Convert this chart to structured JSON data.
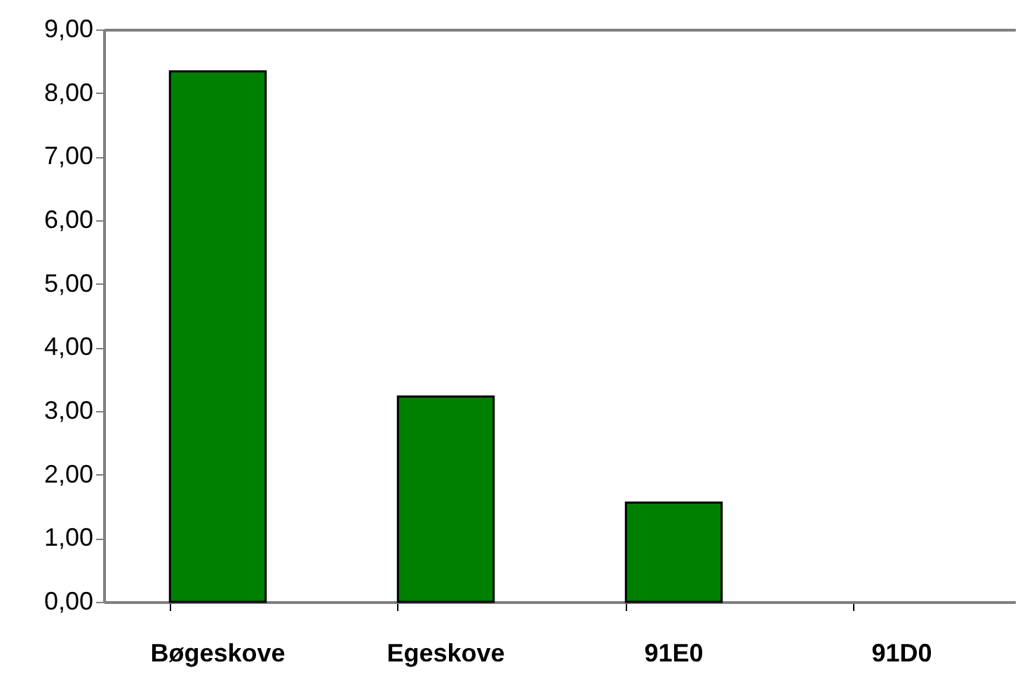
{
  "chart_data": {
    "type": "bar",
    "categories": [
      "Bøgeskove",
      "Egeskove",
      "91E0",
      "91D0"
    ],
    "values": [
      8.34,
      3.23,
      1.56,
      0
    ],
    "color": "#008000",
    "ylim": [
      0,
      9
    ],
    "yticks": [
      {
        "value": 0,
        "label": "0,00"
      },
      {
        "value": 1,
        "label": "1,00"
      },
      {
        "value": 2,
        "label": "2,00"
      },
      {
        "value": 3,
        "label": "3,00"
      },
      {
        "value": 4,
        "label": "4,00"
      },
      {
        "value": 5,
        "label": "5,00"
      },
      {
        "value": 6,
        "label": "6,00"
      },
      {
        "value": 7,
        "label": "7,00"
      },
      {
        "value": 8,
        "label": "8,00"
      },
      {
        "value": 9,
        "label": "9,00"
      }
    ],
    "grid": false
  }
}
